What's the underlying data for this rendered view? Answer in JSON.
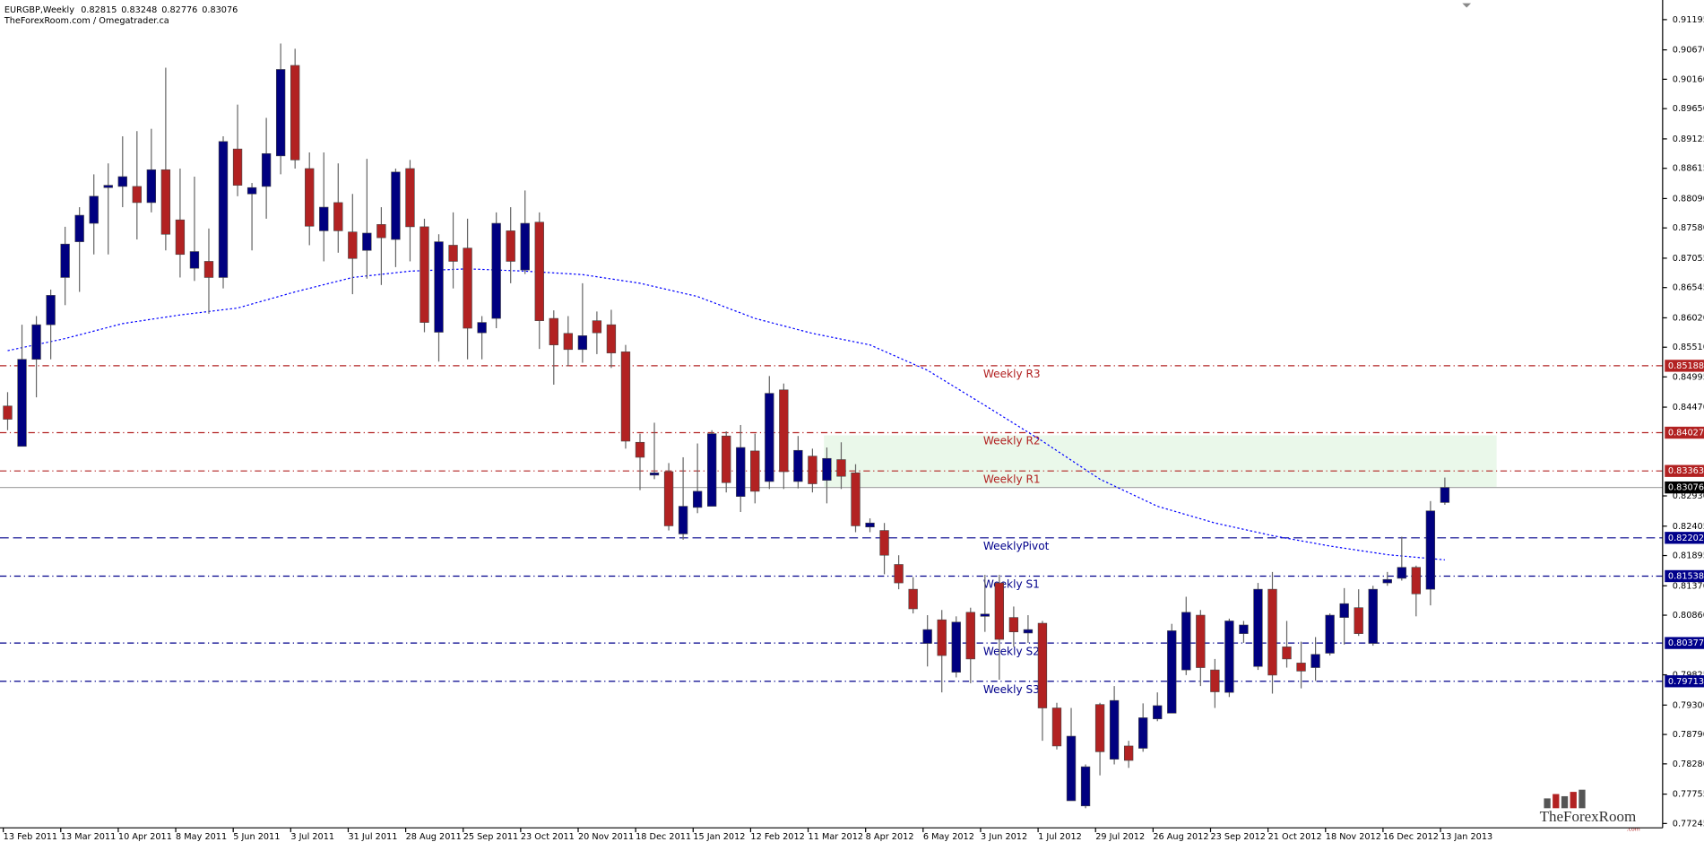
{
  "chart_data": {
    "type": "candlestick",
    "title": "EURGBP,Weekly",
    "subtitle": "TheForexRoom.com / Omegatrader.ca",
    "logo": "TheForexRoom",
    "logo_suffix": ".com",
    "up_color": "#000080",
    "down_color": "#b22222",
    "categories": [
      "13 Feb 2011",
      null,
      null,
      null,
      "13 Mar 2011",
      null,
      null,
      null,
      "10 Apr 2011",
      null,
      null,
      null,
      "8 May 2011",
      null,
      null,
      null,
      "5 Jun 2011",
      null,
      null,
      null,
      "3 Jul 2011",
      null,
      null,
      null,
      "31 Jul 2011",
      null,
      null,
      null,
      "28 Aug 2011",
      null,
      null,
      null,
      "25 Sep 2011",
      null,
      null,
      null,
      "23 Oct 2011",
      null,
      null,
      null,
      "20 Nov 2011",
      null,
      null,
      null,
      "18 Dec 2011",
      null,
      null,
      null,
      "15 Jan 2012",
      null,
      null,
      null,
      "12 Feb 2012",
      null,
      null,
      null,
      "11 Mar 2012",
      null,
      null,
      null,
      "8 Apr 2012",
      null,
      null,
      null,
      "6 May 2012",
      null,
      null,
      null,
      "3 Jun 2012",
      null,
      null,
      null,
      "1 Jul 2012",
      null,
      null,
      null,
      "29 Jul 2012",
      null,
      null,
      null,
      "26 Aug 2012",
      null,
      null,
      null,
      "23 Sep 2012",
      null,
      null,
      null,
      "21 Oct 2012",
      null,
      null,
      null,
      "18 Nov 2012",
      null,
      null,
      null,
      "16 Dec 2012",
      null,
      null,
      null,
      "13 Jan 2013"
    ],
    "open": [
      0.8449,
      0.8379,
      0.853,
      0.859,
      0.8672,
      0.8734,
      0.8766,
      0.8828,
      0.883,
      0.883,
      0.8802,
      0.8859,
      0.8772,
      0.8688,
      0.87,
      0.8672,
      0.8895,
      0.8817,
      0.883,
      0.8883,
      0.904,
      0.8861,
      0.8753,
      0.8802,
      0.8751,
      0.8719,
      0.8764,
      0.8738,
      0.8861,
      0.876,
      0.8577,
      0.8728,
      0.8723,
      0.8576,
      0.8601,
      0.8753,
      0.8685,
      0.8768,
      0.8601,
      0.8575,
      0.8547,
      0.8597,
      0.859,
      0.8543,
      0.8386,
      0.8329,
      0.8335,
      0.8227,
      0.8273,
      0.8275,
      0.8397,
      0.8292,
      0.8371,
      0.8318,
      0.8477,
      0.8318,
      0.8362,
      0.832,
      0.8356,
      0.8333,
      0.8239,
      0.8233,
      0.8174,
      0.8131,
      0.8037,
      0.8078,
      0.7987,
      0.8091,
      0.8084,
      0.8142,
      0.8082,
      0.8055,
      0.8072,
      0.7925,
      0.7764,
      0.7755,
      0.7931,
      0.7836,
      0.7859,
      0.7855,
      0.7906,
      0.7916,
      0.7991,
      0.8086,
      0.7991,
      0.7952,
      0.8054,
      0.7997,
      0.8131,
      0.8031,
      0.8003,
      0.7995,
      0.802,
      0.8082,
      0.8099,
      0.8037,
      0.8142,
      0.815,
      0.8169,
      0.8131,
      0.82815
    ],
    "high": [
      0.8473,
      0.859,
      0.8605,
      0.8651,
      0.876,
      0.8794,
      0.8851,
      0.887,
      0.8917,
      0.8926,
      0.893,
      0.9036,
      0.8861,
      0.8847,
      0.8757,
      0.8917,
      0.8972,
      0.8836,
      0.8949,
      0.9078,
      0.9069,
      0.8889,
      0.8889,
      0.887,
      0.8817,
      0.8878,
      0.8794,
      0.8861,
      0.8876,
      0.8774,
      0.8747,
      0.8785,
      0.8774,
      0.8605,
      0.8785,
      0.8794,
      0.8823,
      0.8785,
      0.8615,
      0.8605,
      0.8662,
      0.8613,
      0.8616,
      0.8555,
      0.8401,
      0.842,
      0.835,
      0.836,
      0.8384,
      0.8407,
      0.8405,
      0.8416,
      0.8401,
      0.8501,
      0.8488,
      0.8397,
      0.8375,
      0.8377,
      0.8386,
      0.8348,
      0.8254,
      0.8246,
      0.819,
      0.8152,
      0.8086,
      0.8095,
      0.8084,
      0.8099,
      0.8156,
      0.8156,
      0.8101,
      0.8086,
      0.8076,
      0.7934,
      0.7925,
      0.7827,
      0.7934,
      0.7963,
      0.7868,
      0.7933,
      0.7952,
      0.8071,
      0.8118,
      0.8095,
      0.801,
      0.808,
      0.8076,
      0.8142,
      0.8161,
      0.8076,
      0.804,
      0.8048,
      0.8089,
      0.8133,
      0.8131,
      0.8137,
      0.8161,
      0.8222,
      0.8172,
      0.8284,
      0.83248
    ],
    "low": [
      0.8407,
      0.8379,
      0.8464,
      0.853,
      0.8624,
      0.8647,
      0.8712,
      0.8712,
      0.8794,
      0.8738,
      0.8785,
      0.8719,
      0.8672,
      0.8666,
      0.8609,
      0.8653,
      0.8813,
      0.8719,
      0.8774,
      0.8851,
      0.8861,
      0.8728,
      0.87,
      0.8715,
      0.8643,
      0.867,
      0.8659,
      0.869,
      0.87,
      0.8577,
      0.8526,
      0.8653,
      0.853,
      0.853,
      0.8584,
      0.8662,
      0.8678,
      0.8548,
      0.8486,
      0.8518,
      0.8524,
      0.8539,
      0.8515,
      0.8375,
      0.8303,
      0.8322,
      0.8233,
      0.8217,
      0.8263,
      0.8275,
      0.8299,
      0.8265,
      0.828,
      0.8305,
      0.8305,
      0.8306,
      0.8299,
      0.828,
      0.8305,
      0.823,
      0.823,
      0.8157,
      0.8131,
      0.8089,
      0.7997,
      0.7952,
      0.7978,
      0.7968,
      0.8057,
      0.7974,
      0.8031,
      0.8038,
      0.7868,
      0.7853,
      0.7764,
      0.7751,
      0.7808,
      0.7827,
      0.7821,
      0.7849,
      0.7902,
      0.7916,
      0.7982,
      0.7963,
      0.7925,
      0.7944,
      0.8038,
      0.7991,
      0.795,
      0.7995,
      0.7959,
      0.7972,
      0.8016,
      0.8035,
      0.805,
      0.8033,
      0.8137,
      0.8146,
      0.8084,
      0.8103,
      0.82776
    ],
    "close": [
      0.8426,
      0.853,
      0.859,
      0.8641,
      0.873,
      0.878,
      0.8813,
      0.8832,
      0.8847,
      0.8802,
      0.8859,
      0.8747,
      0.8712,
      0.8717,
      0.8672,
      0.8908,
      0.8832,
      0.8828,
      0.8887,
      0.9033,
      0.8876,
      0.8761,
      0.8794,
      0.8753,
      0.8705,
      0.8749,
      0.8741,
      0.8855,
      0.876,
      0.8594,
      0.8734,
      0.87,
      0.8584,
      0.8594,
      0.8766,
      0.87,
      0.8766,
      0.8597,
      0.8555,
      0.8547,
      0.8571,
      0.8576,
      0.8541,
      0.8388,
      0.836,
      0.8333,
      0.8241,
      0.8275,
      0.8301,
      0.8401,
      0.8316,
      0.8377,
      0.8301,
      0.8471,
      0.8335,
      0.8372,
      0.8314,
      0.8358,
      0.8327,
      0.8241,
      0.8246,
      0.819,
      0.8142,
      0.8097,
      0.8061,
      0.8016,
      0.8074,
      0.801,
      0.8088,
      0.8044,
      0.8057,
      0.8061,
      0.7925,
      0.7859,
      0.7876,
      0.7823,
      0.7849,
      0.7938,
      0.7834,
      0.7908,
      0.7929,
      0.8059,
      0.8091,
      0.7995,
      0.7953,
      0.8076,
      0.8069,
      0.8131,
      0.7982,
      0.801,
      0.7989,
      0.8018,
      0.8086,
      0.8106,
      0.8054,
      0.8131,
      0.8148,
      0.8169,
      0.8123,
      0.8267,
      0.83076
    ],
    "moving_average": {
      "color": "#0000ff",
      "x": [
        0,
        4,
        8,
        12,
        16,
        20,
        24,
        28,
        32,
        36,
        40,
        44,
        48,
        52,
        56,
        60,
        64,
        68,
        72,
        76,
        80,
        84,
        88,
        92,
        96,
        100
      ],
      "values": [
        0.8545,
        0.8566,
        0.8592,
        0.8607,
        0.8619,
        0.8647,
        0.8672,
        0.8683,
        0.8687,
        0.8683,
        0.8677,
        0.8662,
        0.8639,
        0.8601,
        0.8575,
        0.8555,
        0.8511,
        0.845,
        0.8388,
        0.8322,
        0.8275,
        0.8246,
        0.8224,
        0.8206,
        0.8191,
        0.8182
      ]
    },
    "zone": {
      "color": "#eaf8ea",
      "x": [
        56.8,
        103.6
      ],
      "values": [
        0.8308,
        0.8398
      ]
    },
    "levels": [
      {
        "name": "Weekly R3",
        "value": 0.85188,
        "color": "#b22222",
        "dash": "dashdot"
      },
      {
        "name": "Weekly R2",
        "value": 0.84027,
        "color": "#b22222",
        "dash": "dashdot"
      },
      {
        "name": "Weekly R1",
        "value": 0.83363,
        "color": "#b22222",
        "dash": "dashdot"
      },
      {
        "name": "WeeklyPivot",
        "value": 0.82202,
        "color": "#00008b",
        "dash": "dash"
      },
      {
        "name": "Weekly S1",
        "value": 0.81538,
        "color": "#00008b",
        "dash": "dashdot"
      },
      {
        "name": "Weekly S2",
        "value": 0.80377,
        "color": "#00008b",
        "dash": "dashdot"
      },
      {
        "name": "Weekly S3",
        "value": 0.79713,
        "color": "#00008b",
        "dash": "dashdot"
      }
    ],
    "ylim": [
      0.7717,
      0.91535
    ],
    "yticks": [
      0.91195,
      {
        "value": 0.9067,
        "label": "0.90670"
      },
      {
        "value": 0.9016,
        "label": "0.90160"
      },
      {
        "value": 0.8965,
        "label": "0.89650"
      },
      0.89125,
      0.88615,
      {
        "value": 0.8809,
        "label": "0.88090"
      },
      {
        "value": 0.8758,
        "label": "0.87580"
      },
      0.87055,
      0.86545,
      {
        "value": 0.8602,
        "label": "0.86020"
      },
      {
        "value": 0.8551,
        "label": "0.85510"
      },
      0.84995,
      {
        "value": 0.8447,
        "label": "0.84470"
      },
      {
        "value": 0.8293,
        "label": "0.82930"
      },
      0.82405,
      0.81895,
      {
        "value": 0.8137,
        "label": "0.81370"
      },
      {
        "value": 0.8086,
        "label": "0.80860"
      },
      0.79825,
      {
        "value": 0.793,
        "label": "0.79300"
      },
      {
        "value": 0.7879,
        "label": "0.78790"
      },
      {
        "value": 0.7828,
        "label": "0.78280"
      },
      0.77755,
      0.77245
    ]
  }
}
